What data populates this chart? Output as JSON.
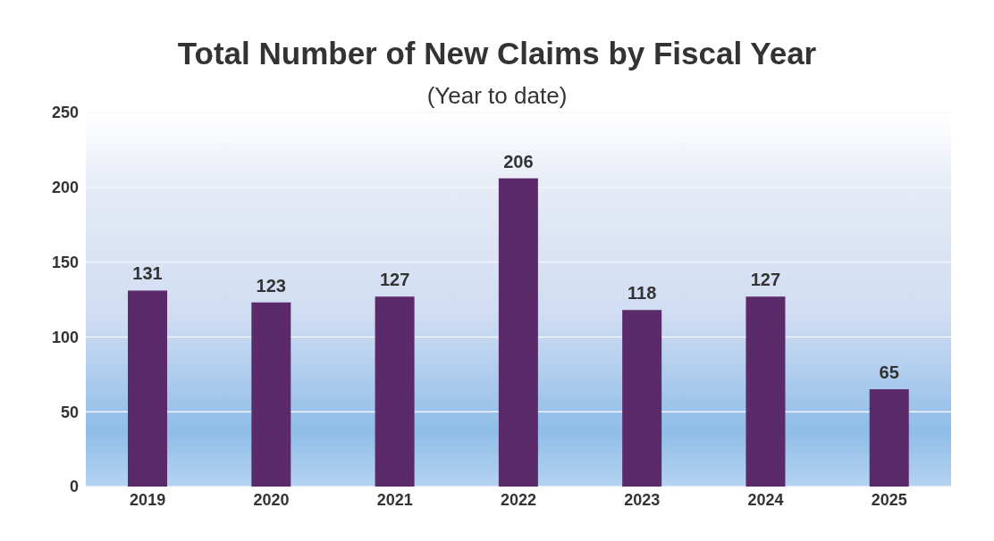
{
  "chart_data": {
    "type": "bar",
    "title": "Total Number of New Claims by Fiscal Year",
    "subtitle": "(Year to date)",
    "categories": [
      "2019",
      "2020",
      "2021",
      "2022",
      "2023",
      "2024",
      "2025"
    ],
    "values": [
      131,
      123,
      127,
      206,
      118,
      127,
      65
    ],
    "color": "#5b2a6b",
    "ylim": [
      0,
      250
    ],
    "yticks": [
      0,
      50,
      100,
      150,
      200,
      250
    ],
    "grid": "y",
    "data_labels": true
  }
}
